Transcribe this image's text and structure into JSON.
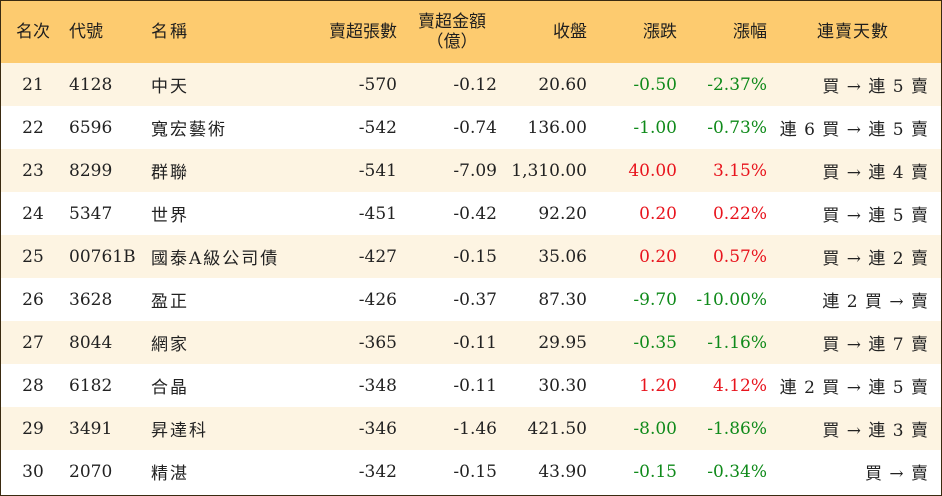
{
  "headers": {
    "rank": "名次",
    "code": "代號",
    "name": "名稱",
    "sell_lots": "賣超張數",
    "sell_amount": "賣超金額",
    "sell_amount_unit": "（億）",
    "close": "收盤",
    "change": "漲跌",
    "change_pct": "漲幅",
    "streak": "連賣天數"
  },
  "colors": {
    "header_bg": "#fdcb6f",
    "stripe_bg": "#fdf4e2",
    "up": "#e8141d",
    "down": "#0f8a1a"
  },
  "rows": [
    {
      "rank": "21",
      "code": "4128",
      "name": "中天",
      "sell_lots": "-570",
      "sell_amount": "-0.12",
      "close": "20.60",
      "change": "-0.50",
      "change_pct": "-2.37%",
      "dir": "down",
      "streak": "買 → 連 5 賣"
    },
    {
      "rank": "22",
      "code": "6596",
      "name": "寬宏藝術",
      "sell_lots": "-542",
      "sell_amount": "-0.74",
      "close": "136.00",
      "change": "-1.00",
      "change_pct": "-0.73%",
      "dir": "down",
      "streak": "連 6 買 → 連 5 賣"
    },
    {
      "rank": "23",
      "code": "8299",
      "name": "群聯",
      "sell_lots": "-541",
      "sell_amount": "-7.09",
      "close": "1,310.00",
      "change": "40.00",
      "change_pct": "3.15%",
      "dir": "up",
      "streak": "買 → 連 4 賣"
    },
    {
      "rank": "24",
      "code": "5347",
      "name": "世界",
      "sell_lots": "-451",
      "sell_amount": "-0.42",
      "close": "92.20",
      "change": "0.20",
      "change_pct": "0.22%",
      "dir": "up",
      "streak": "買 → 連 5 賣"
    },
    {
      "rank": "25",
      "code": "00761B",
      "name": "國泰A級公司債",
      "sell_lots": "-427",
      "sell_amount": "-0.15",
      "close": "35.06",
      "change": "0.20",
      "change_pct": "0.57%",
      "dir": "up",
      "streak": "買 → 連 2 賣"
    },
    {
      "rank": "26",
      "code": "3628",
      "name": "盈正",
      "sell_lots": "-426",
      "sell_amount": "-0.37",
      "close": "87.30",
      "change": "-9.70",
      "change_pct": "-10.00%",
      "dir": "down",
      "streak": "連 2 買 → 賣"
    },
    {
      "rank": "27",
      "code": "8044",
      "name": "網家",
      "sell_lots": "-365",
      "sell_amount": "-0.11",
      "close": "29.95",
      "change": "-0.35",
      "change_pct": "-1.16%",
      "dir": "down",
      "streak": "買 → 連 7 賣"
    },
    {
      "rank": "28",
      "code": "6182",
      "name": "合晶",
      "sell_lots": "-348",
      "sell_amount": "-0.11",
      "close": "30.30",
      "change": "1.20",
      "change_pct": "4.12%",
      "dir": "up",
      "streak": "連 2 買 → 連 5 賣"
    },
    {
      "rank": "29",
      "code": "3491",
      "name": "昇達科",
      "sell_lots": "-346",
      "sell_amount": "-1.46",
      "close": "421.50",
      "change": "-8.00",
      "change_pct": "-1.86%",
      "dir": "down",
      "streak": "買 → 連 3 賣"
    },
    {
      "rank": "30",
      "code": "2070",
      "name": "精湛",
      "sell_lots": "-342",
      "sell_amount": "-0.15",
      "close": "43.90",
      "change": "-0.15",
      "change_pct": "-0.34%",
      "dir": "down",
      "streak": "買 → 賣"
    }
  ]
}
